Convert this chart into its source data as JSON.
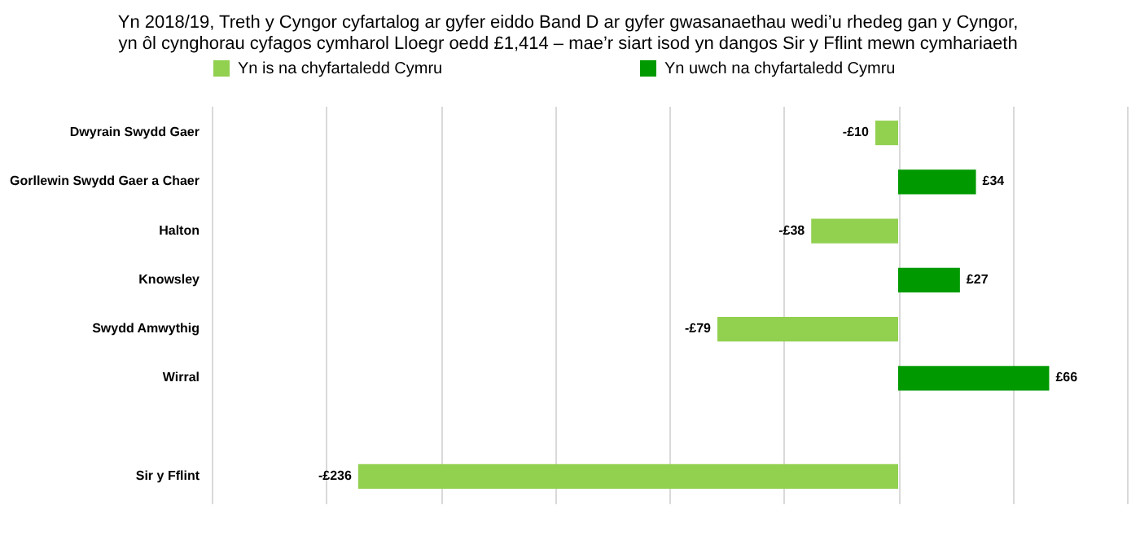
{
  "chart_data": {
    "type": "bar",
    "orientation": "horizontal",
    "title": "Yn 2018/19, Treth y Cyngor cyfartalog ar gyfer eiddo Band D ar gyfer gwasanaethau wedi’u rhedeg gan y Cyngor, yn ôl cynghorau cyfagos cymharol Lloegr oedd £1,414 – mae’r siart isod yn dangos Sir y Fflint mewn cymhariaeth",
    "categories": [
      "Dwyrain Swydd Gaer",
      "Gorllewin Swydd Gaer a Chaer",
      "Halton",
      "Knowsley",
      "Swydd Amwythig",
      "Wirral",
      null,
      "Sir y Fflint"
    ],
    "series": [
      {
        "name": "Yn is na chyfartaledd Cymru",
        "color": "#92d050",
        "values": [
          -10,
          null,
          -38,
          null,
          -79,
          null,
          null,
          -236
        ],
        "value_labels": [
          "-£10",
          null,
          "-£38",
          null,
          "-£79",
          null,
          null,
          "-£236"
        ]
      },
      {
        "name": "Yn uwch na chyfartaledd Cymru",
        "color": "#009a00",
        "values": [
          null,
          34,
          null,
          27,
          null,
          66,
          null,
          null
        ],
        "value_labels": [
          null,
          "£34",
          null,
          "£27",
          null,
          "£66",
          null,
          null
        ]
      }
    ],
    "xlim": [
      -300,
      100
    ],
    "xticks": [
      {
        "value": -300,
        "label": null
      },
      {
        "value": -250,
        "label": null
      },
      {
        "value": -200,
        "label": null
      },
      {
        "value": -150,
        "label": null
      },
      {
        "value": -100,
        "label": null
      },
      {
        "value": -50,
        "label": null
      },
      {
        "value": 0,
        "label": null
      },
      {
        "value": 50,
        "label": null
      },
      {
        "value": 100,
        "label": null
      }
    ],
    "tick_labels": "y",
    "grid": "x",
    "legend": "top"
  }
}
